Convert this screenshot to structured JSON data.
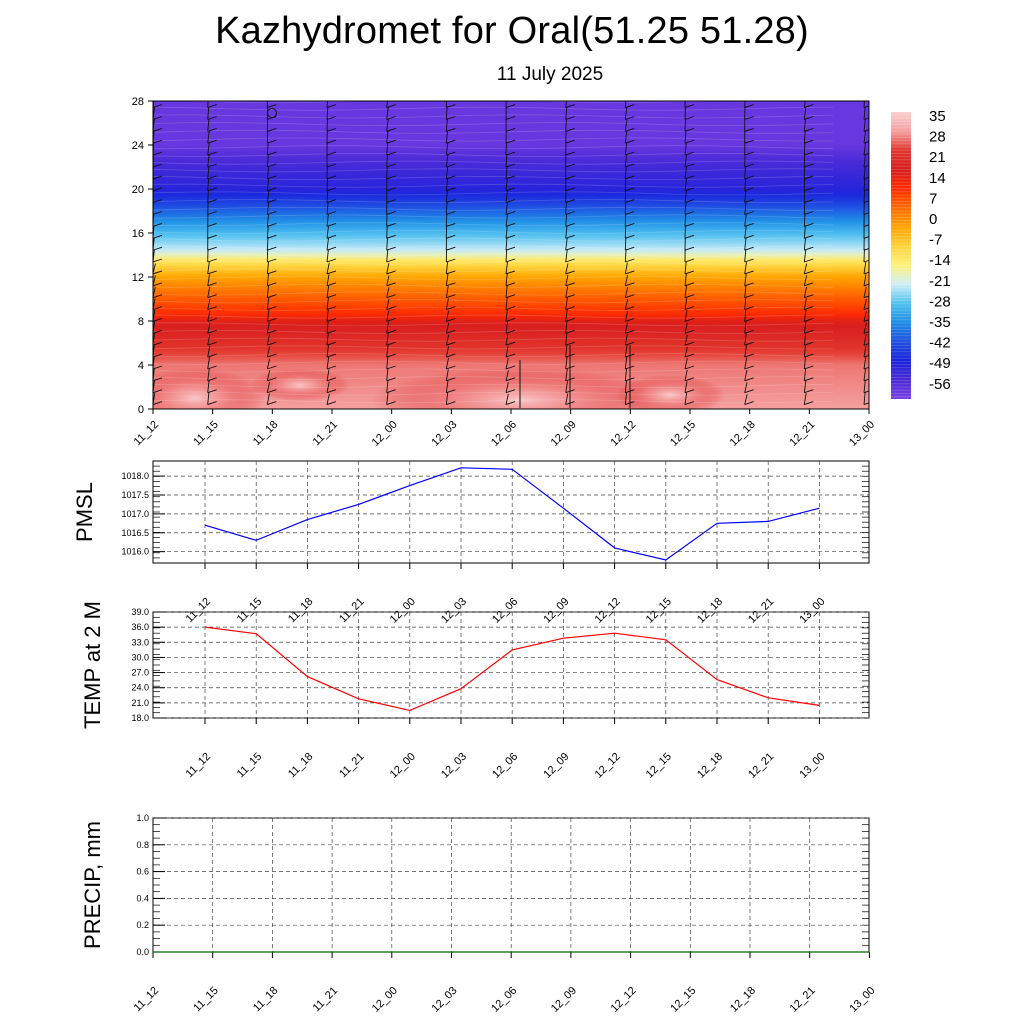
{
  "header": {
    "title": "Kazhydromet for Oral(51.25 51.28)",
    "subtitle": "11 July 2025"
  },
  "chart_data": [
    {
      "type": "heatmap",
      "name": "vertical-cross-section",
      "x_categories": [
        "11_12",
        "11_15",
        "11_18",
        "11_21",
        "12_00",
        "12_03",
        "12_06",
        "12_09",
        "12_12",
        "12_15",
        "12_18",
        "12_21",
        "13_00"
      ],
      "y_ticks": [
        0,
        4,
        8,
        12,
        16,
        20,
        24,
        28
      ],
      "ylim": [
        0,
        28
      ],
      "colorbar": {
        "labels": [
          "35",
          "28",
          "21",
          "14",
          "7",
          "0",
          "-7",
          "-14",
          "-21",
          "-28",
          "-35",
          "-42",
          "-49",
          "-56"
        ],
        "colors": [
          "#f7b2b2",
          "#ef3b2c",
          "#d7191c",
          "#e31a1c",
          "#ff4500",
          "#ff8c00",
          "#ffb000",
          "#ffe34d",
          "#bfe8f2",
          "#2fb3e8",
          "#1e78e6",
          "#1a2fe0",
          "#3a20d8",
          "#7b3fe4"
        ]
      },
      "z_profile": {
        "levels": [
          0,
          4,
          8,
          12,
          14,
          16,
          20,
          24,
          28
        ],
        "temps": [
          33,
          31,
          21,
          3,
          -14,
          -25,
          -50,
          -58,
          -58
        ]
      },
      "wind_barbs": true
    },
    {
      "type": "line",
      "name": "PMSL",
      "ylabel": "PMSL",
      "x": [
        "11_12",
        "11_15",
        "11_18",
        "11_21",
        "12_00",
        "12_03",
        "12_06",
        "12_09",
        "12_12",
        "12_15",
        "12_18",
        "12_21",
        "13_00"
      ],
      "y_ticks": [
        "1016.0",
        "1016.5",
        "1017.0",
        "1017.5",
        "1018.0"
      ],
      "ylim": [
        1015.7,
        1018.4
      ],
      "series": [
        {
          "color": "#0000ff",
          "values": [
            1016.7,
            1016.3,
            1016.85,
            1017.25,
            1017.75,
            1018.22,
            1018.18,
            1017.15,
            1016.1,
            1015.78,
            1016.75,
            1016.8,
            1017.15
          ]
        }
      ],
      "grid": true
    },
    {
      "type": "line",
      "name": "TEMP",
      "ylabel": "TEMP at 2 M",
      "x": [
        "11_12",
        "11_15",
        "11_18",
        "11_21",
        "12_00",
        "12_03",
        "12_06",
        "12_09",
        "12_12",
        "12_15",
        "12_18",
        "12_21",
        "13_00"
      ],
      "y_ticks": [
        "18.0",
        "21.0",
        "24.0",
        "27.0",
        "30.0",
        "33.0",
        "36.0",
        "39.0"
      ],
      "ylim": [
        18,
        39
      ],
      "series": [
        {
          "color": "#ff0000",
          "values": [
            36.0,
            34.7,
            26.2,
            21.8,
            19.5,
            23.8,
            31.5,
            33.8,
            34.8,
            33.5,
            25.6,
            22.0,
            20.5
          ]
        }
      ],
      "grid": true
    },
    {
      "type": "line",
      "name": "PRECIP",
      "ylabel": "PRECIP, mm",
      "x": [
        "11_12",
        "11_15",
        "11_18",
        "11_21",
        "12_00",
        "12_03",
        "12_06",
        "12_09",
        "12_12",
        "12_15",
        "12_18",
        "12_21",
        "13_00"
      ],
      "y_ticks": [
        "0.0",
        "0.2",
        "0.4",
        "0.6",
        "0.8",
        "1.0"
      ],
      "ylim": [
        0,
        1
      ],
      "series": [
        {
          "color": "#006400",
          "values": [
            0,
            0,
            0,
            0,
            0,
            0,
            0,
            0,
            0,
            0,
            0,
            0,
            0
          ]
        }
      ],
      "grid": true
    }
  ]
}
